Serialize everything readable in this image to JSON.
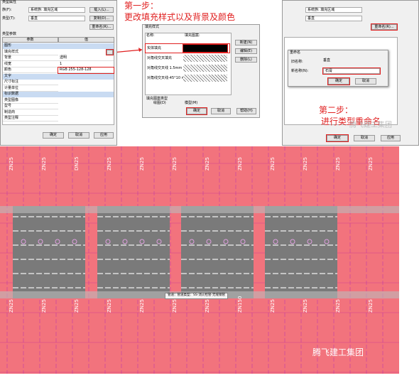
{
  "step1": {
    "line1": "第一步：",
    "line2": "更改填充样式以及背景及颜色"
  },
  "step2": {
    "line1": "第二步：",
    "line2": "进行类型重命名"
  },
  "left_dialog": {
    "title": "类型属性",
    "family_label": "族(F):",
    "family": "系统族: 填充区域",
    "load": "载入(L)...",
    "type_label": "类型(T):",
    "type": "垂直",
    "duplicate": "复制(D)...",
    "rename": "重命名(R)...",
    "section": "类型参数",
    "col_param": "参数",
    "col_value": "值",
    "groups": [
      {
        "name": "图形",
        "rows": [
          {
            "param": "填充样式"
          },
          {
            "param": "背景",
            "value": "透明"
          },
          {
            "param": "线宽",
            "value": "1"
          },
          {
            "param": "颜色",
            "value": "RGB 255-128-128"
          }
        ]
      },
      {
        "name": "文字",
        "rows": [
          {
            "param": "尺寸标注"
          },
          {
            "param": "计量单位"
          }
        ]
      },
      {
        "name": "标识数据",
        "rows": [
          {
            "param": "类型图像"
          },
          {
            "param": "型号"
          },
          {
            "param": "制造商"
          },
          {
            "param": "类型注释"
          }
        ]
      }
    ],
    "ok": "确定",
    "cancel": "取消",
    "apply": "应用"
  },
  "fill_dialog": {
    "title": "填充样式",
    "col_name": "名称:",
    "col_pattern": "填充图案:",
    "items": [
      "实体填充",
      "对角线交叉填充",
      "对角线交叉线 1.5mm",
      "对角线交叉线-45°10 mm"
    ],
    "new": "新建(N)",
    "edit": "编辑(E)",
    "delete": "删除(L)",
    "pattern_type": "填充图案类型",
    "drafting": "绘图(D)",
    "model": "模型(M)",
    "ok": "确定",
    "cancel": "取消",
    "help": "帮助(H)"
  },
  "right_dialog": {
    "family": "系统族: 填充区域",
    "type": "垂直",
    "rename": "重命名(R)...",
    "ok": "确定",
    "cancel": "取消",
    "apply": "应用"
  },
  "rename_dialog": {
    "title": "重命名",
    "old_label": "旧名称:",
    "old": "垂直",
    "new_label": "新名称(N):",
    "new": "石膏",
    "ok": "确定",
    "cancel": "取消"
  },
  "watermark": "腾飞建工集团",
  "plan": {
    "labels": [
      "ZN25",
      "ZN25",
      "DN25",
      "ZN25",
      "ZN25",
      "ZN25",
      "ZN25",
      "ZN25",
      "ZN25",
      "ZN25",
      "ZN25",
      "ZN25",
      "ZN25",
      "ZN25",
      "ZN25",
      "ZN25",
      "ZN25",
      "ZN25",
      "ZN25",
      "ZN150",
      "ZN25",
      "ZN25",
      "ZN25",
      "ZN25"
    ],
    "tooltip": "管道：管道类型：SS-消火栓管-无缝钢管"
  }
}
